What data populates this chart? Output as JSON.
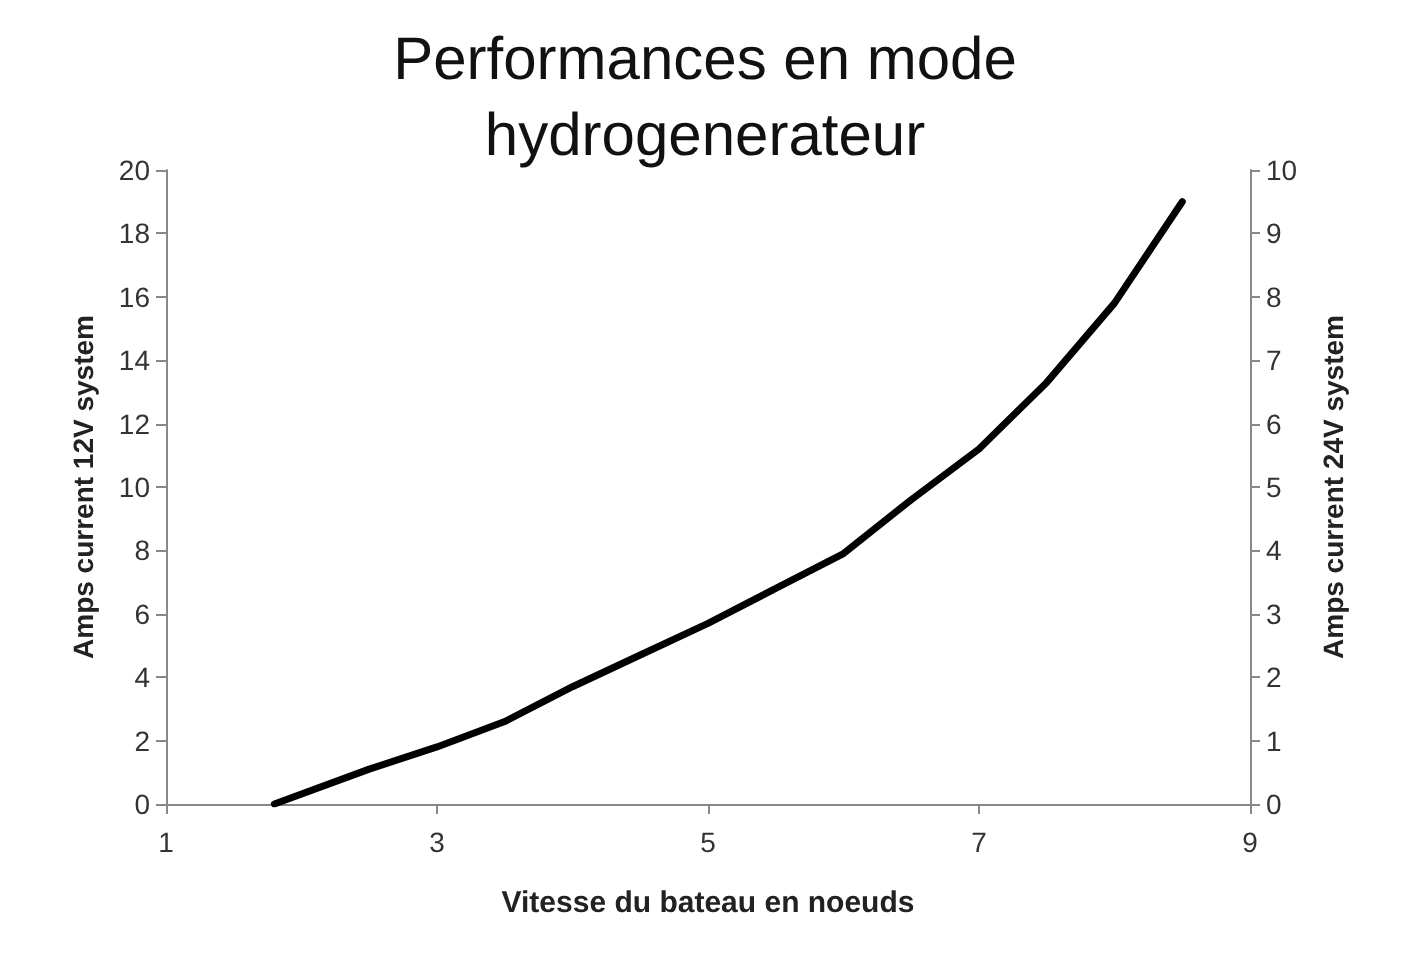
{
  "chart_data": {
    "type": "line",
    "title": "Performances en mode\nhydrogenerateur",
    "xlabel": "Vitesse du bateau en noeuds",
    "ylabel": "Amps current 12V system",
    "y2label": "Amps current 24V system",
    "x": [
      1.8,
      2.5,
      3,
      3.5,
      4,
      4.5,
      5,
      5.5,
      6,
      6.5,
      7,
      7.5,
      8,
      8.5
    ],
    "series": [
      {
        "color": "#000000",
        "values": [
          0,
          1.1,
          1.8,
          2.6,
          3.7,
          4.7,
          5.7,
          6.8,
          7.9,
          9.6,
          11.2,
          13.3,
          15.8,
          19
        ]
      }
    ],
    "xlim": [
      1,
      9
    ],
    "xticks": [
      1,
      3,
      5,
      7,
      9
    ],
    "ylim": [
      0,
      20
    ],
    "yticks": [
      0,
      2,
      4,
      6,
      8,
      10,
      12,
      14,
      16,
      18,
      20
    ],
    "y2lim": [
      0,
      10
    ],
    "y2ticks": [
      0,
      1,
      2,
      3,
      4,
      5,
      6,
      7,
      8,
      9,
      10
    ],
    "grid": false,
    "marker": "none",
    "line_style": "solid"
  }
}
